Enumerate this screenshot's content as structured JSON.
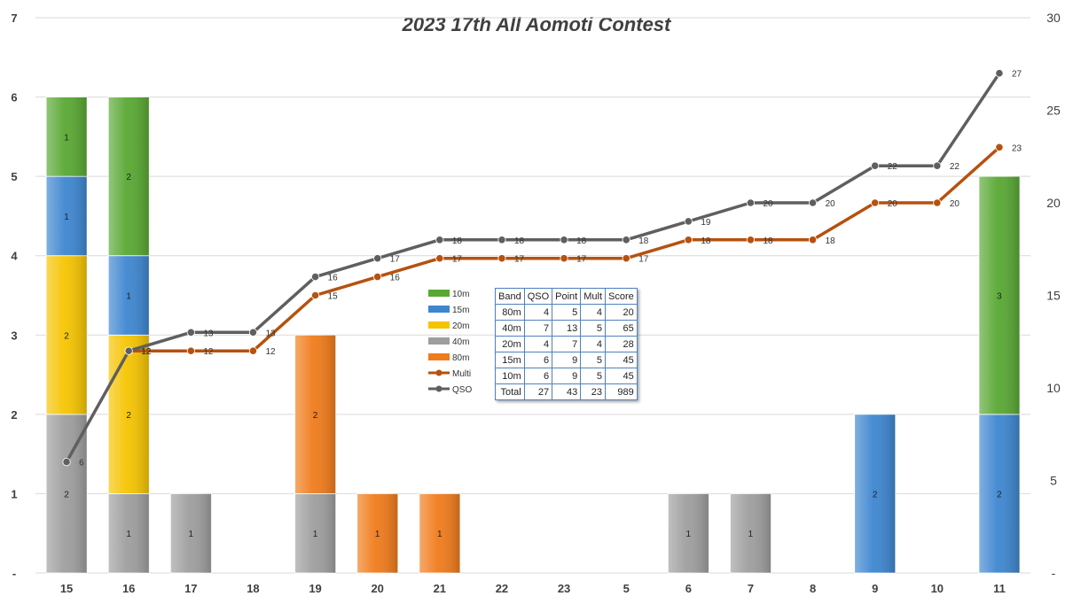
{
  "chart_data": {
    "type": "bar",
    "title": "2023 17th All Aomoti Contest",
    "categories": [
      "15",
      "16",
      "17",
      "18",
      "19",
      "20",
      "21",
      "22",
      "23",
      "5",
      "6",
      "7",
      "8",
      "9",
      "10",
      "11"
    ],
    "left_axis": {
      "ylim": [
        0,
        7
      ],
      "ticks": [
        "-",
        "1",
        "2",
        "3",
        "4",
        "5",
        "6",
        "7"
      ]
    },
    "right_axis": {
      "ylim": [
        0,
        30
      ],
      "ticks": [
        "-",
        "5",
        "10",
        "15",
        "20",
        "25",
        "30"
      ]
    },
    "stacked_bars": [
      {
        "name": "40m",
        "color": "#9e9e9e",
        "values": [
          2,
          1,
          1,
          0,
          1,
          0,
          0,
          0,
          0,
          0,
          1,
          1,
          0,
          0,
          0,
          0
        ]
      },
      {
        "name": "80m",
        "color": "#f07b1a",
        "values": [
          0,
          0,
          0,
          0,
          2,
          1,
          1,
          0,
          0,
          0,
          0,
          0,
          0,
          0,
          0,
          0
        ]
      },
      {
        "name": "20m",
        "color": "#f5c400",
        "values": [
          2,
          2,
          0,
          0,
          0,
          0,
          0,
          0,
          0,
          0,
          0,
          0,
          0,
          0,
          0,
          0
        ]
      },
      {
        "name": "15m",
        "color": "#3d86d0",
        "values": [
          1,
          1,
          0,
          0,
          0,
          0,
          0,
          0,
          0,
          0,
          0,
          0,
          0,
          2,
          0,
          2
        ]
      },
      {
        "name": "10m",
        "color": "#58a832",
        "values": [
          1,
          2,
          0,
          0,
          0,
          0,
          0,
          0,
          0,
          0,
          0,
          0,
          0,
          0,
          0,
          3
        ]
      }
    ],
    "lines": [
      {
        "name": "Multi",
        "color": "#b5520f",
        "values": [
          null,
          12,
          12,
          12,
          15,
          16,
          17,
          17,
          17,
          17,
          18,
          18,
          18,
          20,
          20,
          23
        ]
      },
      {
        "name": "QSO",
        "color": "#5f5f5f",
        "values": [
          6,
          12,
          13,
          13,
          16,
          17,
          18,
          18,
          18,
          18,
          19,
          20,
          20,
          22,
          22,
          27
        ]
      }
    ],
    "legend": [
      {
        "name": "10m",
        "kind": "bar",
        "color": "#58a832"
      },
      {
        "name": "15m",
        "kind": "bar",
        "color": "#3d86d0"
      },
      {
        "name": "20m",
        "kind": "bar",
        "color": "#f5c400"
      },
      {
        "name": "40m",
        "kind": "bar",
        "color": "#9e9e9e"
      },
      {
        "name": "80m",
        "kind": "bar",
        "color": "#f07b1a"
      },
      {
        "name": "Multi",
        "kind": "line",
        "color": "#b5520f"
      },
      {
        "name": "QSO",
        "kind": "line",
        "color": "#5f5f5f"
      }
    ],
    "legend_position": "center",
    "grid": true,
    "table": {
      "headers": [
        "Band",
        "QSO",
        "Point",
        "Mult",
        "Score"
      ],
      "rows": [
        [
          "80m",
          "4",
          "5",
          "4",
          "20"
        ],
        [
          "40m",
          "7",
          "13",
          "5",
          "65"
        ],
        [
          "20m",
          "4",
          "7",
          "4",
          "28"
        ],
        [
          "15m",
          "6",
          "9",
          "5",
          "45"
        ],
        [
          "10m",
          "6",
          "9",
          "5",
          "45"
        ],
        [
          "Total",
          "27",
          "43",
          "23",
          "989"
        ]
      ]
    }
  }
}
